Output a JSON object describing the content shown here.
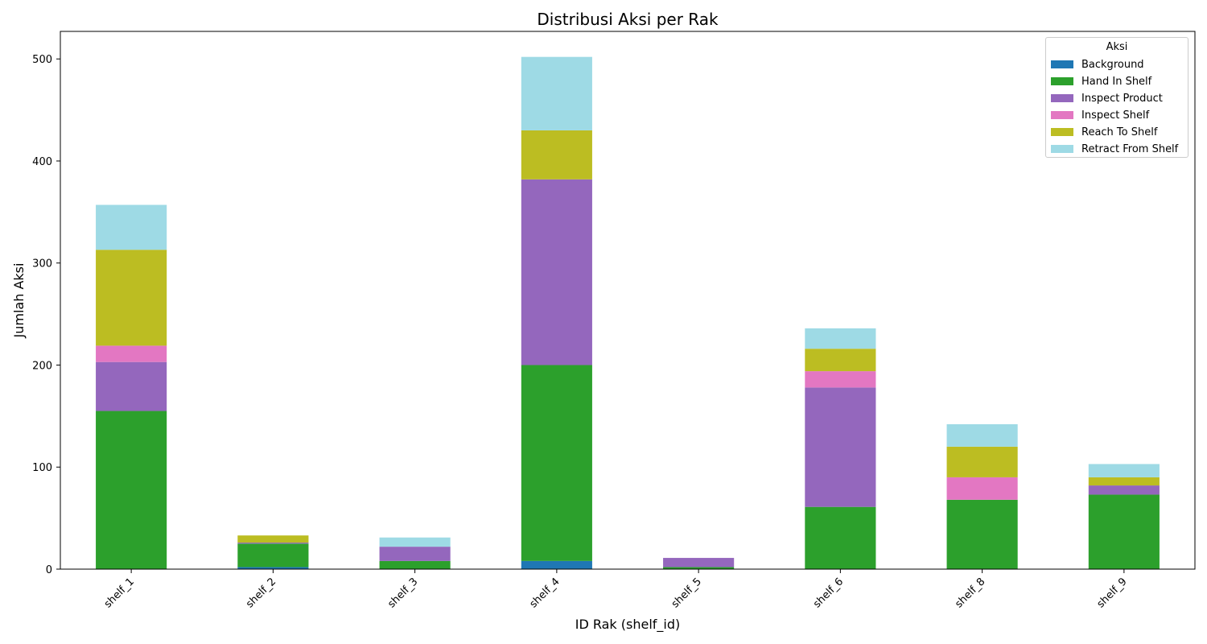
{
  "chart_data": {
    "type": "bar",
    "stacked": true,
    "title": "Distribusi Aksi per Rak",
    "xlabel": "ID Rak (shelf_id)",
    "ylabel": "Jumlah Aksi",
    "ylim": [
      0,
      527
    ],
    "yticks": [
      0,
      100,
      200,
      300,
      400,
      500
    ],
    "grid": false,
    "legend": {
      "title": "Aksi",
      "placement": "top-right"
    },
    "categories": [
      "shelf_1",
      "shelf_2",
      "shelf_3",
      "shelf_4",
      "shelf_5",
      "shelf_6",
      "shelf_8",
      "shelf_9"
    ],
    "series": [
      {
        "name": "Background",
        "color": "#1f77b4",
        "values": [
          0,
          2,
          0,
          8,
          0,
          0,
          0,
          0
        ]
      },
      {
        "name": "Hand In Shelf",
        "color": "#2ca02c",
        "values": [
          155,
          23,
          8,
          192,
          2,
          61,
          68,
          73
        ]
      },
      {
        "name": "Inspect Product",
        "color": "#9467bd",
        "values": [
          48,
          1,
          14,
          182,
          9,
          117,
          0,
          9
        ]
      },
      {
        "name": "Inspect Shelf",
        "color": "#e377c2",
        "values": [
          16,
          0,
          0,
          0,
          0,
          16,
          22,
          0
        ]
      },
      {
        "name": "Reach To Shelf",
        "color": "#bcbd22",
        "values": [
          94,
          7,
          0,
          48,
          0,
          22,
          30,
          8
        ]
      },
      {
        "name": "Retract From Shelf",
        "color": "#9edae5",
        "values": [
          44,
          0,
          9,
          72,
          0,
          20,
          22,
          13
        ]
      }
    ]
  }
}
